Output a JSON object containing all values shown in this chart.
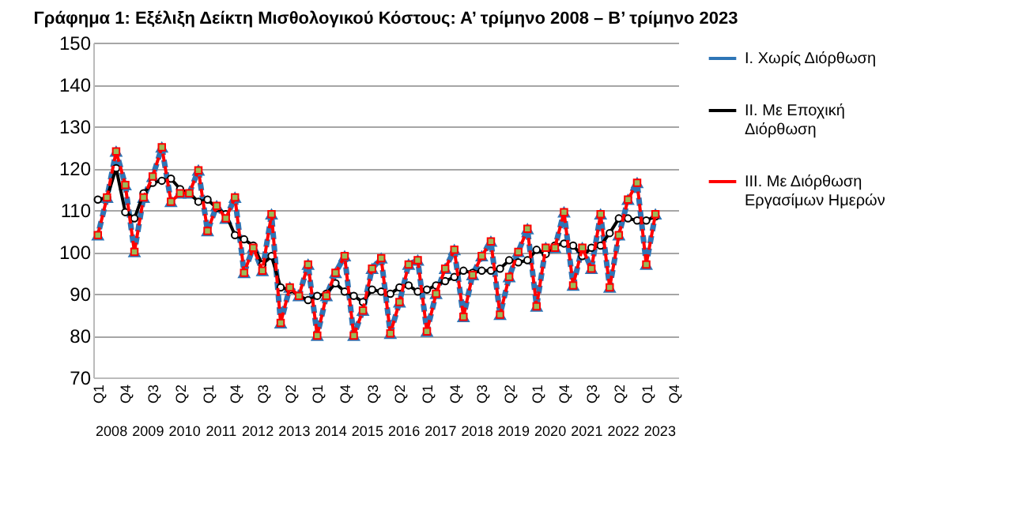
{
  "chart_data": {
    "type": "line",
    "title": "Γράφημα 1: Εξέλιξη Δείκτη Μισθολογικού Κόστους:  Α’ τρίμηνο 2008 – Β’ τρίμηνο 2023",
    "categories": [
      "Q1",
      null,
      null,
      "Q4",
      null,
      null,
      "Q3",
      null,
      null,
      "Q2",
      null,
      null,
      "Q1",
      null,
      null,
      "Q4",
      null,
      null,
      "Q3",
      null,
      null,
      "Q2",
      null,
      null,
      "Q1",
      null,
      null,
      "Q4",
      null,
      null,
      "Q3",
      null,
      null,
      "Q2",
      null,
      null,
      "Q1",
      null,
      null,
      "Q4",
      null,
      null,
      "Q3",
      null,
      null,
      "Q2",
      null,
      null,
      "Q1",
      null,
      null,
      "Q4",
      null,
      null,
      "Q3",
      null,
      null,
      "Q2",
      null,
      null,
      "Q1",
      null,
      null,
      "Q4"
    ],
    "annotations": [
      "2008",
      "2009",
      "2010",
      "2011",
      "2012",
      "2013",
      "2014",
      "2015",
      "2016",
      "2017",
      "2018",
      "2019",
      "2020",
      "2021",
      "2022",
      "2023"
    ],
    "ylim": [
      70,
      150
    ],
    "yticks": [
      70,
      80,
      90,
      100,
      110,
      120,
      130,
      140,
      150
    ],
    "grid": "y",
    "legend": "right",
    "series": [
      {
        "name": "I. Χωρίς Διόρθωση",
        "color": "#2e75b6",
        "marker": "triangle",
        "line_style": "dashed",
        "values": [
          104,
          113,
          124,
          116,
          100,
          113,
          118,
          125,
          112,
          114,
          114,
          119.5,
          105,
          111,
          108,
          113,
          95,
          101,
          95.5,
          109,
          83,
          91.5,
          89.5,
          97,
          80,
          89.5,
          95,
          99,
          80,
          86,
          96,
          98.5,
          80.5,
          88,
          97,
          98,
          81,
          90,
          96,
          100.5,
          84.5,
          94.5,
          99,
          102.5,
          85,
          94,
          100,
          105.5,
          87,
          101,
          101,
          109.5,
          92,
          101,
          96,
          109,
          91.5,
          104,
          112.5,
          116.5,
          97,
          109,
          null,
          null
        ]
      },
      {
        "name": "II. Με Εποχική Διόρθωση",
        "color": "#000000",
        "marker": "circle",
        "line_style": "solid",
        "values": [
          112.5,
          113,
          120,
          109.5,
          108,
          114,
          116.5,
          117,
          117.5,
          115,
          114,
          112,
          112.5,
          110.5,
          109,
          104,
          103,
          101.5,
          97,
          99,
          91.5,
          91,
          89.5,
          88.5,
          89.5,
          90,
          92.5,
          90.5,
          89.5,
          88,
          91,
          90.5,
          90,
          91.5,
          92,
          90.5,
          91,
          92,
          93,
          94,
          95.5,
          95,
          95.5,
          95.5,
          96,
          98,
          97.5,
          98,
          100.5,
          99.5,
          101.5,
          102,
          101.5,
          99,
          101,
          101.5,
          104.5,
          108,
          108,
          107.5,
          107.5,
          108.5,
          null,
          null
        ]
      },
      {
        "name": "III. Με Διόρθωση Εργασίμων Ημερών",
        "color": "#ff0000",
        "marker": "square",
        "line_style": "dashed",
        "values": [
          104,
          113,
          124,
          116,
          100,
          113,
          118,
          125,
          112,
          114,
          114,
          119.5,
          105,
          111,
          108,
          113,
          95,
          101,
          95.5,
          109,
          83,
          91.5,
          89.5,
          97,
          80,
          89.5,
          95,
          99,
          80,
          86,
          96,
          98.5,
          80.5,
          88,
          97,
          98,
          81,
          90,
          96,
          100.5,
          84.5,
          94.5,
          99,
          102.5,
          85,
          94,
          100,
          105.5,
          87,
          101,
          101,
          109.5,
          92,
          101,
          96,
          109,
          91.5,
          104,
          112.5,
          116.5,
          97,
          109,
          null,
          null
        ]
      }
    ]
  }
}
